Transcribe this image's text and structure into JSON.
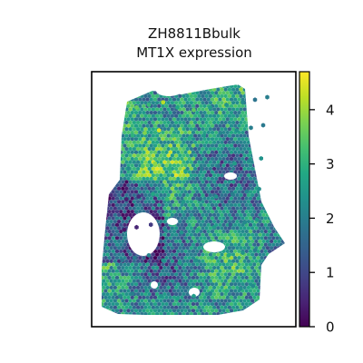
{
  "chart_data": {
    "type": "scatter",
    "title": "ZH8811Bbulk",
    "subtitle": "MT1X expression",
    "xlabel": "",
    "ylabel": "",
    "colormap": "viridis",
    "color_range": [
      0,
      4.7
    ],
    "colorbar": {
      "ticks": [
        0,
        1,
        2,
        3,
        4
      ],
      "tick_labels": [
        "0",
        "1",
        "2",
        "3",
        "4"
      ]
    },
    "grid": false,
    "legend": "colorbar-right",
    "marker": "hexagon",
    "series": [
      {
        "x": [
          0.22,
          0.28,
          0.35,
          0.42,
          0.5,
          0.58,
          0.66,
          0.74,
          0.8,
          0.86,
          0.2,
          0.26,
          0.33,
          0.4,
          0.48,
          0.55,
          0.63,
          0.71,
          0.78,
          0.84,
          0.18,
          0.25,
          0.31,
          0.38,
          0.46,
          0.54,
          0.62,
          0.7,
          0.77,
          0.83,
          0.17,
          0.23,
          0.3,
          0.37,
          0.45,
          0.53,
          0.61,
          0.69,
          0.76,
          0.82,
          0.16,
          0.22,
          0.29,
          0.36,
          0.44,
          0.52,
          0.6,
          0.68,
          0.75,
          0.81,
          0.15,
          0.21,
          0.28,
          0.35,
          0.43,
          0.51,
          0.59,
          0.67,
          0.74,
          0.8,
          0.14,
          0.2,
          0.27,
          0.34,
          0.42,
          0.5,
          0.58,
          0.66,
          0.73,
          0.79
        ],
        "y": [
          0.86,
          0.87,
          0.88,
          0.86,
          0.85,
          0.86,
          0.87,
          0.88,
          0.89,
          0.9,
          0.75,
          0.76,
          0.77,
          0.75,
          0.74,
          0.75,
          0.76,
          0.77,
          0.78,
          0.79,
          0.62,
          0.63,
          0.64,
          0.62,
          0.61,
          0.62,
          0.63,
          0.64,
          0.65,
          0.66,
          0.5,
          0.51,
          0.52,
          0.5,
          0.49,
          0.5,
          0.51,
          0.52,
          0.53,
          0.54,
          0.38,
          0.39,
          0.4,
          0.38,
          0.37,
          0.38,
          0.39,
          0.4,
          0.41,
          0.42,
          0.26,
          0.27,
          0.28,
          0.26,
          0.25,
          0.26,
          0.27,
          0.28,
          0.29,
          0.3,
          0.12,
          0.13,
          0.14,
          0.12,
          0.11,
          0.12,
          0.13,
          0.14,
          0.15,
          0.16
        ],
        "values": [
          3.6,
          3.1,
          4.2,
          2.8,
          3.5,
          2.6,
          2.4,
          2.2,
          1.8,
          2.0,
          3.0,
          3.8,
          4.4,
          3.2,
          2.9,
          2.5,
          2.1,
          2.3,
          2.0,
          1.9,
          2.2,
          3.4,
          3.9,
          3.0,
          2.7,
          2.0,
          1.8,
          2.6,
          2.2,
          2.4,
          0.4,
          0.6,
          2.8,
          3.1,
          2.5,
          1.6,
          2.4,
          2.0,
          2.1,
          2.3,
          0.3,
          0.5,
          0.8,
          2.2,
          2.4,
          2.9,
          2.6,
          1.4,
          2.2,
          2.5,
          1.8,
          2.0,
          2.1,
          2.4,
          2.6,
          2.3,
          3.0,
          2.8,
          2.4,
          2.0,
          2.2,
          2.0,
          2.5,
          2.4,
          2.7,
          2.6,
          2.1,
          2.9,
          2.3,
          2.2
        ]
      }
    ]
  }
}
